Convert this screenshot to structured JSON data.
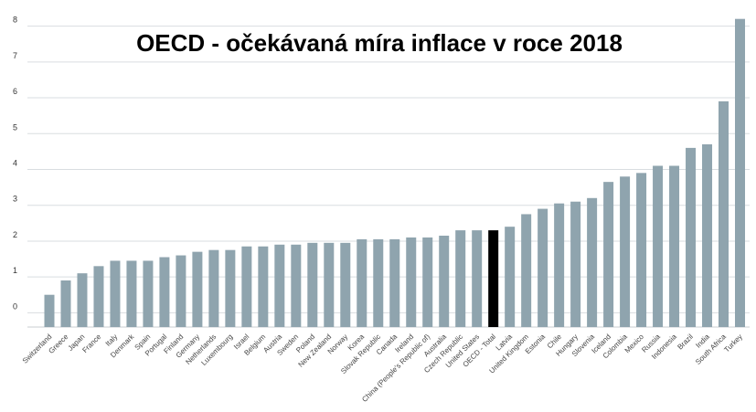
{
  "chart_data": {
    "type": "bar",
    "title": "OECD - očekávaná míra inflace v roce 2018",
    "xlabel": "",
    "ylabel": "",
    "ylim": [
      -0.5,
      8.5
    ],
    "yticks": [
      0,
      1,
      2,
      3,
      4,
      5,
      6,
      7,
      8
    ],
    "grid": true,
    "legend": "none",
    "colors": {
      "bar": "#8fa4ae",
      "highlight": "#000000",
      "grid": "#d9dde0",
      "axis": "#c8cdd0"
    },
    "highlight_category": "OECD - Total",
    "categories": [
      "Switzerland",
      "Greece",
      "Japan",
      "France",
      "Italy",
      "Denmark",
      "Spain",
      "Portugal",
      "Finland",
      "Germany",
      "Netherlands",
      "Luxembourg",
      "Israel",
      "Belgium",
      "Austria",
      "Sweden",
      "Poland",
      "New Zealand",
      "Norway",
      "Korea",
      "Slovak Republic",
      "Canada",
      "Ireland",
      "China (People's Republic of)",
      "Australia",
      "Czech Republic",
      "United States",
      "OECD - Total",
      "Latvia",
      "United Kingdom",
      "Estonia",
      "Chile",
      "Hungary",
      "Slovenia",
      "Iceland",
      "Colombia",
      "Mexico",
      "Russia",
      "Indonesia",
      "Brazil",
      "India",
      "South Africa",
      "Turkey"
    ],
    "values": [
      0.4,
      0.8,
      1.0,
      1.2,
      1.35,
      1.35,
      1.35,
      1.45,
      1.5,
      1.6,
      1.65,
      1.65,
      1.75,
      1.75,
      1.8,
      1.8,
      1.85,
      1.85,
      1.85,
      1.95,
      1.95,
      1.95,
      2.0,
      2.0,
      2.05,
      2.2,
      2.2,
      2.2,
      2.3,
      2.65,
      2.8,
      2.95,
      3.0,
      3.1,
      3.55,
      3.7,
      3.8,
      4.0,
      4.0,
      4.5,
      4.6,
      5.8,
      8.1
    ]
  }
}
